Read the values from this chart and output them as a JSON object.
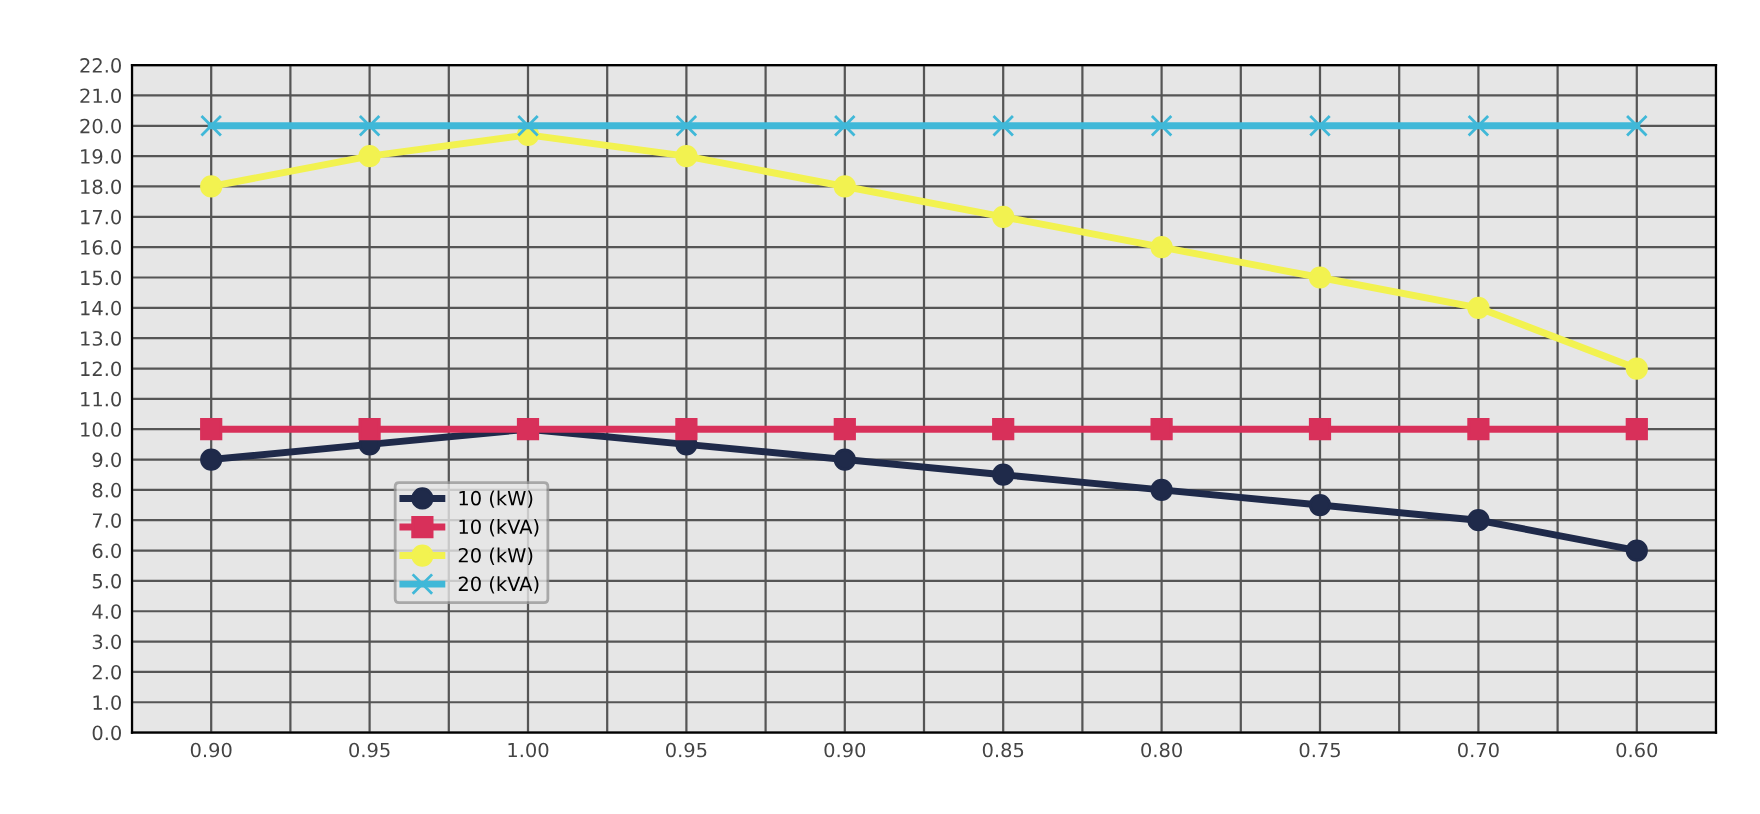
{
  "chart_data": {
    "type": "line",
    "categories": [
      "0.90",
      "0.95",
      "1.00",
      "0.95",
      "0.90",
      "0.85",
      "0.80",
      "0.75",
      "0.70",
      "0.60"
    ],
    "series": [
      {
        "name": "10 (kW)",
        "color": "#1f2a4a",
        "marker": "circle",
        "values": [
          9.0,
          9.5,
          10.0,
          9.5,
          9.0,
          8.5,
          8.0,
          7.5,
          7.0,
          6.0
        ]
      },
      {
        "name": "10 (kVA)",
        "color": "#d8305a",
        "marker": "square",
        "values": [
          10.0,
          10.0,
          10.0,
          10.0,
          10.0,
          10.0,
          10.0,
          10.0,
          10.0,
          10.0
        ]
      },
      {
        "name": "20 (kW)",
        "color": "#f2f250",
        "marker": "circle",
        "values": [
          18.0,
          19.0,
          19.7,
          19.0,
          18.0,
          17.0,
          16.0,
          15.0,
          14.0,
          12.0
        ]
      },
      {
        "name": "20 (kVA)",
        "color": "#40b8d8",
        "marker": "cross",
        "values": [
          20.0,
          20.0,
          20.0,
          20.0,
          20.0,
          20.0,
          20.0,
          20.0,
          20.0,
          20.0
        ]
      }
    ],
    "ylim": [
      0,
      22
    ],
    "yticks": [
      {
        "value": 0,
        "label": "0.0"
      },
      {
        "value": 1,
        "label": "1.0"
      },
      {
        "value": 2,
        "label": "2.0"
      },
      {
        "value": 3,
        "label": "3.0"
      },
      {
        "value": 4,
        "label": "4.0"
      },
      {
        "value": 5,
        "label": "5.0"
      },
      {
        "value": 6,
        "label": "6.0"
      },
      {
        "value": 7,
        "label": "7.0"
      },
      {
        "value": 8,
        "label": "8.0"
      },
      {
        "value": 9,
        "label": "9.0"
      },
      {
        "value": 10,
        "label": "10.0"
      },
      {
        "value": 11,
        "label": "11.0"
      },
      {
        "value": 12,
        "label": "12.0"
      },
      {
        "value": 13,
        "label": "13.0"
      },
      {
        "value": 14,
        "label": "14.0"
      },
      {
        "value": 15,
        "label": "15.0"
      },
      {
        "value": 16,
        "label": "16.0"
      },
      {
        "value": 17,
        "label": "17.0"
      },
      {
        "value": 18,
        "label": "18.0"
      },
      {
        "value": 19,
        "label": "19.0"
      },
      {
        "value": 20,
        "label": "20.0"
      },
      {
        "value": 21,
        "label": "21.0"
      },
      {
        "value": 22,
        "label": "22.0"
      }
    ],
    "grid": true,
    "legend": "lower left",
    "line_style": "solid"
  }
}
